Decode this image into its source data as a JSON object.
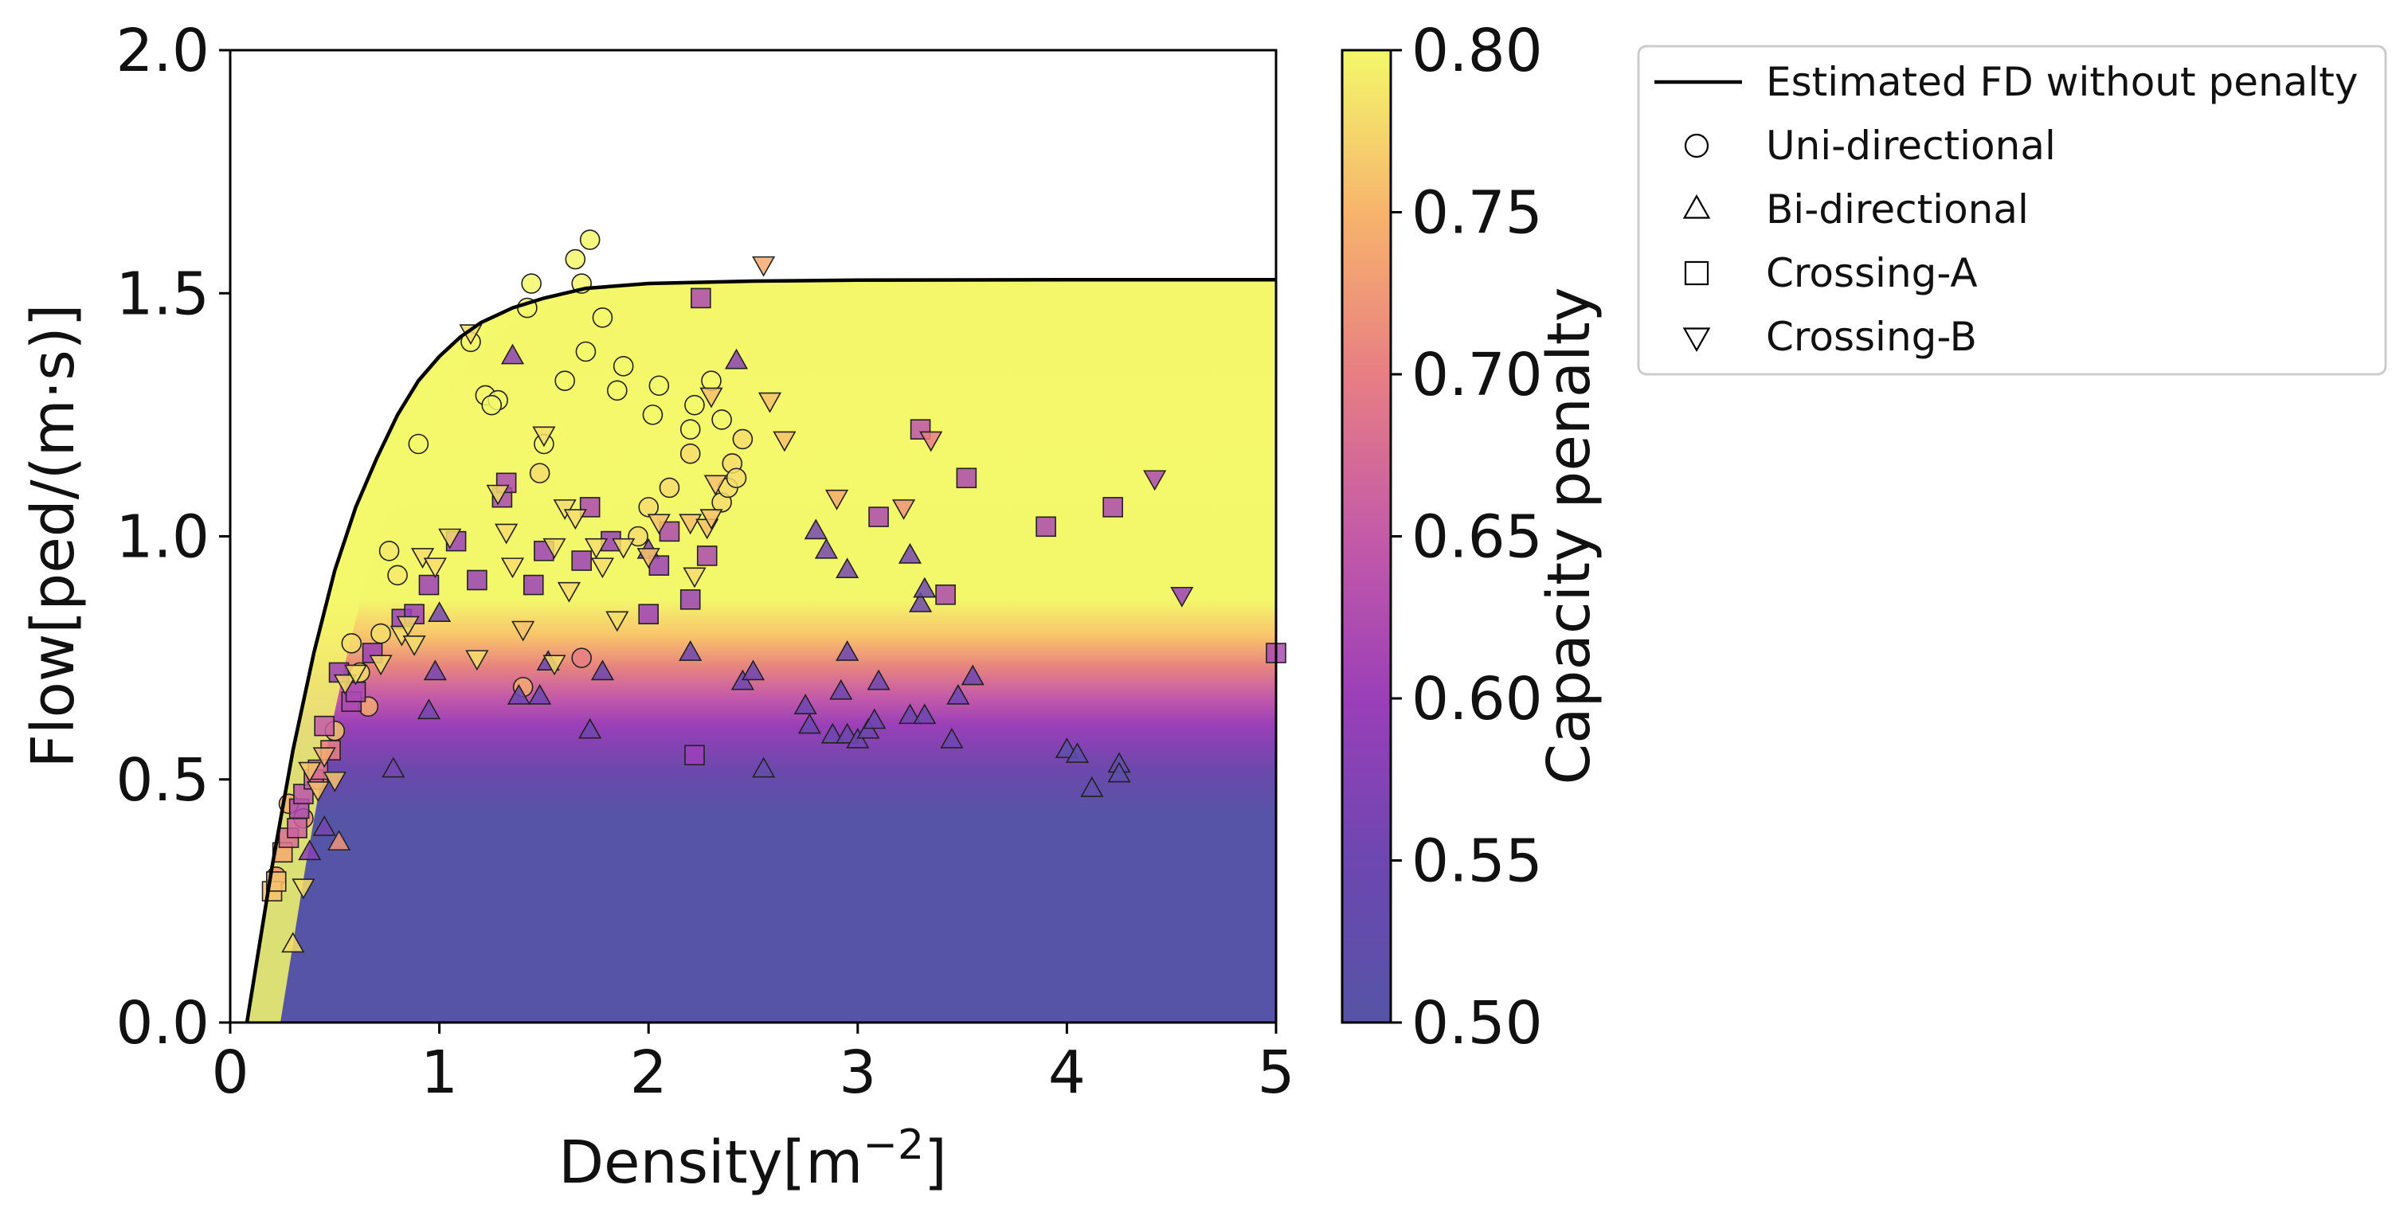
{
  "chart_data": {
    "type": "scatter",
    "xlabel": "Density[m⁻²]",
    "ylabel": "Flow[ped/(m·s)]",
    "xlim": [
      0,
      5
    ],
    "ylim": [
      0,
      2.0
    ],
    "x_ticks": [
      "0",
      "1",
      "2",
      "3",
      "4",
      "5"
    ],
    "y_ticks": [
      "0.0",
      "0.5",
      "1.0",
      "1.5",
      "2.0"
    ],
    "colorbar": {
      "label": "Capacity penalty",
      "range": [
        0.5,
        0.8
      ],
      "ticks": [
        "0.50",
        "0.55",
        "0.60",
        "0.65",
        "0.70",
        "0.75",
        "0.80"
      ],
      "colormap": "plasma",
      "low_color": "#5654a6",
      "high_color": "#f3f86b"
    },
    "curve": {
      "name": "Estimated FD without penalty",
      "color": "#000000",
      "points": [
        [
          0.08,
          0.0
        ],
        [
          0.2,
          0.32
        ],
        [
          0.3,
          0.56
        ],
        [
          0.4,
          0.76
        ],
        [
          0.5,
          0.93
        ],
        [
          0.6,
          1.06
        ],
        [
          0.7,
          1.16
        ],
        [
          0.8,
          1.25
        ],
        [
          0.9,
          1.32
        ],
        [
          1.0,
          1.37
        ],
        [
          1.1,
          1.41
        ],
        [
          1.2,
          1.44
        ],
        [
          1.35,
          1.47
        ],
        [
          1.5,
          1.49
        ],
        [
          1.7,
          1.51
        ],
        [
          2.0,
          1.52
        ],
        [
          2.5,
          1.525
        ],
        [
          3.0,
          1.527
        ],
        [
          4.0,
          1.528
        ],
        [
          5.0,
          1.528
        ]
      ]
    },
    "legend": {
      "position": "outside-top-right",
      "items": [
        {
          "label": "Estimated FD without penalty",
          "marker": "line"
        },
        {
          "label": "Uni-directional",
          "marker": "circle"
        },
        {
          "label": "Bi-directional",
          "marker": "triangle-up"
        },
        {
          "label": "Crossing-A",
          "marker": "square"
        },
        {
          "label": "Crossing-B",
          "marker": "triangle-down"
        }
      ]
    },
    "series": [
      {
        "name": "Uni-directional",
        "marker": "circle",
        "points": [
          [
            0.22,
            0.3
          ],
          [
            0.28,
            0.45
          ],
          [
            0.35,
            0.42
          ],
          [
            0.42,
            0.5
          ],
          [
            0.5,
            0.6
          ],
          [
            0.58,
            0.78
          ],
          [
            0.62,
            0.72
          ],
          [
            0.66,
            0.65
          ],
          [
            0.72,
            0.8
          ],
          [
            0.76,
            0.97
          ],
          [
            0.8,
            0.92
          ],
          [
            0.9,
            1.19
          ],
          [
            1.15,
            1.4
          ],
          [
            1.22,
            1.29
          ],
          [
            1.28,
            1.28
          ],
          [
            1.25,
            1.27
          ],
          [
            1.42,
            1.47
          ],
          [
            1.44,
            1.52
          ],
          [
            1.5,
            1.19
          ],
          [
            1.48,
            1.13
          ],
          [
            1.6,
            1.32
          ],
          [
            1.65,
            1.57
          ],
          [
            1.68,
            1.52
          ],
          [
            1.72,
            1.61
          ],
          [
            1.7,
            1.38
          ],
          [
            1.78,
            1.45
          ],
          [
            1.85,
            1.3
          ],
          [
            1.88,
            1.35
          ],
          [
            1.95,
            1.0
          ],
          [
            2.0,
            1.06
          ],
          [
            2.02,
            1.25
          ],
          [
            2.05,
            1.31
          ],
          [
            2.1,
            1.1
          ],
          [
            2.2,
            1.22
          ],
          [
            2.2,
            1.17
          ],
          [
            2.22,
            1.27
          ],
          [
            2.3,
            1.32
          ],
          [
            2.35,
            1.07
          ],
          [
            2.35,
            1.24
          ],
          [
            2.38,
            1.1
          ],
          [
            2.4,
            1.15
          ],
          [
            2.42,
            1.12
          ],
          [
            2.45,
            1.2
          ],
          [
            1.68,
            0.75
          ],
          [
            1.4,
            0.69
          ]
        ],
        "colors": [
          0.72,
          0.75,
          0.72,
          0.75,
          0.76,
          0.78,
          0.78,
          0.74,
          0.78,
          0.79,
          0.79,
          0.8,
          0.8,
          0.8,
          0.8,
          0.8,
          0.8,
          0.8,
          0.8,
          0.78,
          0.8,
          0.8,
          0.8,
          0.8,
          0.8,
          0.8,
          0.8,
          0.8,
          0.78,
          0.78,
          0.8,
          0.8,
          0.78,
          0.8,
          0.78,
          0.8,
          0.8,
          0.78,
          0.8,
          0.78,
          0.78,
          0.78,
          0.78,
          0.7,
          0.74
        ]
      },
      {
        "name": "Bi-directional",
        "marker": "triangle-up",
        "points": [
          [
            0.3,
            0.16
          ],
          [
            0.38,
            0.35
          ],
          [
            0.45,
            0.4
          ],
          [
            0.52,
            0.37
          ],
          [
            0.78,
            0.52
          ],
          [
            0.95,
            0.64
          ],
          [
            0.98,
            0.72
          ],
          [
            1.0,
            0.84
          ],
          [
            1.35,
            1.37
          ],
          [
            1.38,
            0.67
          ],
          [
            1.48,
            0.67
          ],
          [
            1.52,
            0.74
          ],
          [
            1.72,
            0.6
          ],
          [
            1.78,
            0.72
          ],
          [
            2.0,
            0.97
          ],
          [
            2.2,
            0.76
          ],
          [
            2.42,
            1.36
          ],
          [
            2.45,
            0.7
          ],
          [
            2.5,
            0.72
          ],
          [
            2.55,
            0.52
          ],
          [
            2.75,
            0.65
          ],
          [
            2.77,
            0.61
          ],
          [
            2.8,
            1.01
          ],
          [
            2.85,
            0.97
          ],
          [
            2.88,
            0.59
          ],
          [
            2.92,
            0.68
          ],
          [
            2.95,
            0.93
          ],
          [
            2.95,
            0.59
          ],
          [
            3.0,
            0.58
          ],
          [
            3.05,
            0.6
          ],
          [
            3.08,
            0.62
          ],
          [
            3.1,
            0.7
          ],
          [
            3.25,
            0.63
          ],
          [
            3.25,
            0.96
          ],
          [
            3.3,
            0.86
          ],
          [
            3.32,
            0.89
          ],
          [
            3.32,
            0.63
          ],
          [
            3.45,
            0.58
          ],
          [
            3.48,
            0.67
          ],
          [
            3.55,
            0.71
          ],
          [
            2.95,
            0.76
          ],
          [
            4.0,
            0.56
          ],
          [
            4.05,
            0.55
          ],
          [
            4.12,
            0.48
          ],
          [
            4.25,
            0.53
          ],
          [
            4.25,
            0.51
          ]
        ],
        "colors": [
          0.78,
          0.58,
          0.56,
          0.72,
          0.56,
          0.56,
          0.56,
          0.56,
          0.58,
          0.55,
          0.55,
          0.55,
          0.55,
          0.55,
          0.58,
          0.55,
          0.58,
          0.55,
          0.55,
          0.53,
          0.55,
          0.55,
          0.56,
          0.56,
          0.55,
          0.55,
          0.56,
          0.55,
          0.55,
          0.55,
          0.55,
          0.55,
          0.55,
          0.56,
          0.55,
          0.55,
          0.55,
          0.55,
          0.55,
          0.55,
          0.55,
          0.52,
          0.52,
          0.52,
          0.52,
          0.52
        ]
      },
      {
        "name": "Crossing-A",
        "marker": "square",
        "points": [
          [
            0.2,
            0.27
          ],
          [
            0.22,
            0.29
          ],
          [
            0.25,
            0.35
          ],
          [
            0.28,
            0.38
          ],
          [
            0.32,
            0.4
          ],
          [
            0.33,
            0.44
          ],
          [
            0.35,
            0.47
          ],
          [
            0.4,
            0.5
          ],
          [
            0.42,
            0.52
          ],
          [
            0.45,
            0.61
          ],
          [
            0.48,
            0.56
          ],
          [
            0.52,
            0.72
          ],
          [
            0.58,
            0.66
          ],
          [
            0.6,
            0.68
          ],
          [
            0.68,
            0.76
          ],
          [
            0.82,
            0.83
          ],
          [
            0.88,
            0.84
          ],
          [
            0.95,
            0.9
          ],
          [
            1.08,
            0.99
          ],
          [
            1.18,
            0.91
          ],
          [
            1.3,
            1.08
          ],
          [
            1.32,
            1.11
          ],
          [
            1.45,
            0.9
          ],
          [
            1.5,
            0.97
          ],
          [
            1.68,
            0.95
          ],
          [
            1.72,
            1.06
          ],
          [
            1.82,
            0.99
          ],
          [
            2.0,
            0.84
          ],
          [
            2.05,
            0.94
          ],
          [
            2.1,
            1.01
          ],
          [
            2.2,
            0.87
          ],
          [
            2.22,
            0.55
          ],
          [
            2.25,
            1.49
          ],
          [
            2.28,
            0.96
          ],
          [
            3.1,
            1.04
          ],
          [
            3.3,
            1.22
          ],
          [
            3.42,
            0.88
          ],
          [
            3.52,
            1.12
          ],
          [
            3.9,
            1.02
          ],
          [
            4.22,
            1.06
          ],
          [
            5.0,
            0.76
          ]
        ],
        "colors": [
          0.76,
          0.76,
          0.74,
          0.68,
          0.66,
          0.62,
          0.64,
          0.66,
          0.68,
          0.65,
          0.7,
          0.6,
          0.62,
          0.62,
          0.6,
          0.6,
          0.6,
          0.6,
          0.6,
          0.6,
          0.62,
          0.62,
          0.6,
          0.6,
          0.6,
          0.62,
          0.6,
          0.6,
          0.6,
          0.62,
          0.6,
          0.6,
          0.62,
          0.62,
          0.62,
          0.64,
          0.62,
          0.62,
          0.62,
          0.62,
          0.62
        ]
      },
      {
        "name": "Crossing-B",
        "marker": "triangle-down",
        "points": [
          [
            0.35,
            0.28
          ],
          [
            0.38,
            0.52
          ],
          [
            0.42,
            0.48
          ],
          [
            0.45,
            0.55
          ],
          [
            0.5,
            0.5
          ],
          [
            0.55,
            0.7
          ],
          [
            0.6,
            0.72
          ],
          [
            0.72,
            0.74
          ],
          [
            0.82,
            0.8
          ],
          [
            0.85,
            0.82
          ],
          [
            0.88,
            0.78
          ],
          [
            0.92,
            0.96
          ],
          [
            0.98,
            0.94
          ],
          [
            1.05,
            1.0
          ],
          [
            1.15,
            1.42
          ],
          [
            1.18,
            0.75
          ],
          [
            1.28,
            1.09
          ],
          [
            1.32,
            1.01
          ],
          [
            1.35,
            0.94
          ],
          [
            1.4,
            0.81
          ],
          [
            1.5,
            1.21
          ],
          [
            1.55,
            0.98
          ],
          [
            1.55,
            0.74
          ],
          [
            1.6,
            1.06
          ],
          [
            1.62,
            0.89
          ],
          [
            1.65,
            1.04
          ],
          [
            1.75,
            0.98
          ],
          [
            1.78,
            0.94
          ],
          [
            1.85,
            0.83
          ],
          [
            1.88,
            0.98
          ],
          [
            2.0,
            0.96
          ],
          [
            2.05,
            1.03
          ],
          [
            2.2,
            1.03
          ],
          [
            2.22,
            0.92
          ],
          [
            2.28,
            1.02
          ],
          [
            2.3,
            1.29
          ],
          [
            2.3,
            1.04
          ],
          [
            2.32,
            1.11
          ],
          [
            2.55,
            1.56
          ],
          [
            2.58,
            1.28
          ],
          [
            2.65,
            1.2
          ],
          [
            2.9,
            1.08
          ],
          [
            3.22,
            1.06
          ],
          [
            3.35,
            1.2
          ],
          [
            4.42,
            1.12
          ],
          [
            4.55,
            0.88
          ]
        ],
        "colors": [
          0.78,
          0.76,
          0.76,
          0.74,
          0.76,
          0.78,
          0.78,
          0.78,
          0.78,
          0.78,
          0.78,
          0.78,
          0.78,
          0.78,
          0.78,
          0.78,
          0.78,
          0.78,
          0.78,
          0.76,
          0.78,
          0.78,
          0.78,
          0.78,
          0.78,
          0.78,
          0.78,
          0.78,
          0.78,
          0.78,
          0.76,
          0.76,
          0.76,
          0.78,
          0.76,
          0.76,
          0.76,
          0.76,
          0.74,
          0.76,
          0.76,
          0.74,
          0.72,
          0.7,
          0.62,
          0.6
        ]
      }
    ]
  }
}
